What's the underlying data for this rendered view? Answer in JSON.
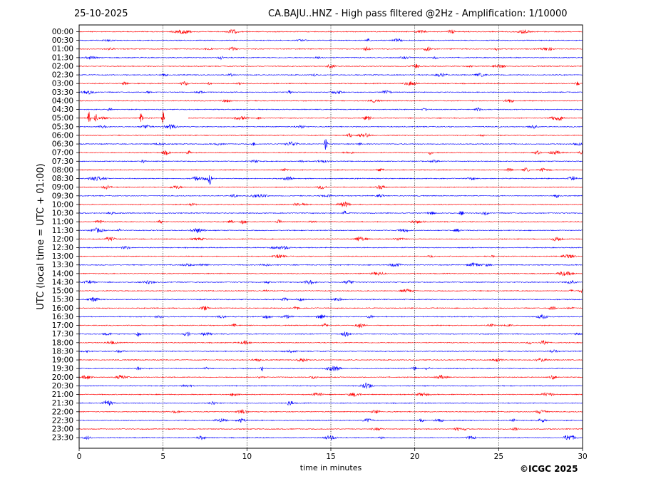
{
  "header": {
    "date": "25-10-2025",
    "title": "CA.BAJU..HNZ - High pass filtered @2Hz - Amplification: 1/10000"
  },
  "copyright": "©ICGC 2025",
  "colors": {
    "even_row": "#ff0000",
    "odd_row": "#0000ff",
    "axes": "#000000"
  },
  "chart_data": {
    "type": "line",
    "title": "CA.BAJU..HNZ - High pass filtered @2Hz - Amplification: 1/10000",
    "xlabel": "time in minutes",
    "ylabel": "UTC (local time = UTC + 01:00)",
    "xlim": [
      0,
      30
    ],
    "x_ticks": [
      0,
      5,
      10,
      15,
      20,
      25,
      30
    ],
    "x_gridlines": [
      5,
      10,
      15,
      20,
      25
    ],
    "grid": "vertical dotted",
    "row_labels": [
      "00:00",
      "00:30",
      "01:00",
      "01:30",
      "02:00",
      "02:30",
      "03:00",
      "03:30",
      "04:00",
      "04:30",
      "05:00",
      "05:30",
      "06:00",
      "06:30",
      "07:00",
      "07:30",
      "08:00",
      "08:30",
      "09:00",
      "09:30",
      "10:00",
      "10:30",
      "11:00",
      "11:30",
      "12:00",
      "12:30",
      "13:00",
      "13:30",
      "14:00",
      "14:30",
      "15:00",
      "15:30",
      "16:00",
      "16:30",
      "17:00",
      "17:30",
      "18:00",
      "18:30",
      "19:00",
      "19:30",
      "20:00",
      "20:30",
      "21:00",
      "21:30",
      "22:00",
      "22:30",
      "23:00",
      "23:30"
    ],
    "row_colors": "alternating red / blue",
    "notable_events": [
      {
        "row": "05:00",
        "minute": 0.6
      },
      {
        "row": "05:00",
        "minute": 1.0
      },
      {
        "row": "05:00",
        "minute": 3.7
      },
      {
        "row": "05:00",
        "minute": 5.0
      },
      {
        "row": "06:30",
        "minute": 14.7
      },
      {
        "row": "08:30",
        "minute": 7.8
      }
    ],
    "data_gap": {
      "row": "05:00",
      "from_minute": 5.1,
      "to_minute": 6.5
    }
  }
}
